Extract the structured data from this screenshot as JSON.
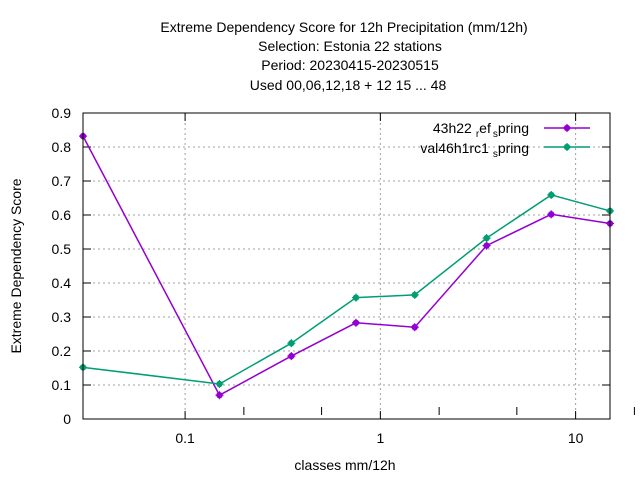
{
  "chart_data": {
    "type": "line",
    "title_lines": [
      "Extreme Dependency Score  for 12h Precipitation (mm/12h)",
      "Selection: Estonia     22 stations",
      "Period: 20230415-20230515",
      "Used  00,06,12,18  + 12 15 ... 48"
    ],
    "xlabel": "classes mm/12h",
    "ylabel": "Extreme Dependency Score",
    "xscale": "log",
    "xlim": [
      0.03,
      15
    ],
    "ylim": [
      0,
      0.9
    ],
    "yticks": [
      0,
      0.1,
      0.2,
      0.3,
      0.4,
      0.5,
      0.6,
      0.7,
      0.8,
      0.9
    ],
    "ytick_labels": [
      "0",
      "0.1",
      "0.2",
      "0.3",
      "0.4",
      "0.5",
      "0.6",
      "0.7",
      "0.8",
      "0.9"
    ],
    "xticks": [
      0.1,
      1,
      10
    ],
    "xtick_labels": [
      "0.1",
      "1",
      "10"
    ],
    "x_minor_ticks": [
      0.2,
      0.5,
      2,
      5,
      20
    ],
    "grid": true,
    "legend_position": "top-right",
    "series": [
      {
        "name": "43h22",
        "name_sub": "r",
        "name_mid": "ef",
        "name_sub2": "s",
        "name_end": "pring",
        "color": "#9400d3",
        "x": [
          0.03,
          0.15,
          0.35,
          0.75,
          1.5,
          3.5,
          7.5,
          15
        ],
        "y": [
          0.832,
          0.07,
          0.185,
          0.283,
          0.27,
          0.51,
          0.602,
          0.575
        ]
      },
      {
        "name": "val46h1rc1",
        "name_sub": "s",
        "name_end": "pring",
        "color": "#009e73",
        "x": [
          0.03,
          0.15,
          0.35,
          0.75,
          1.5,
          3.5,
          7.5,
          15
        ],
        "y": [
          0.152,
          0.103,
          0.223,
          0.357,
          0.365,
          0.532,
          0.659,
          0.612
        ]
      }
    ]
  }
}
